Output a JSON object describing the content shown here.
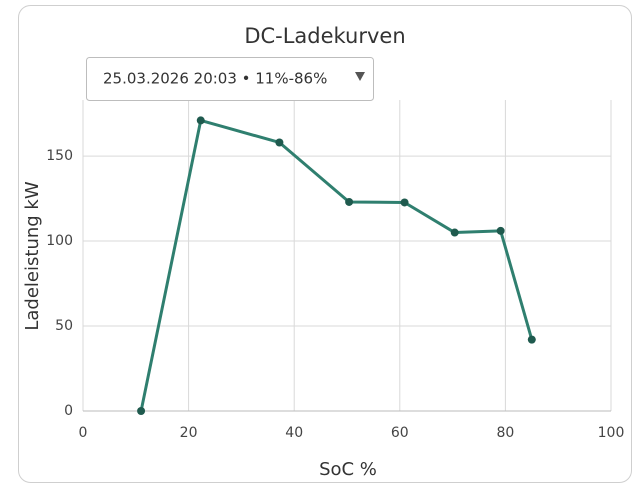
{
  "controls": {
    "dropdown": "25.03.2026 20:03 • 11%-86%"
  },
  "chart_data": {
    "type": "line",
    "title": "DC-Ladekurven",
    "x_label": "SoC %",
    "y_label": "Ladeleistung kW",
    "x": [
      11,
      22.3,
      37.2,
      50.4,
      60.9,
      70.4,
      79.1,
      85
    ],
    "series": [
      {
        "name": "Ladeleistung",
        "color": "#2f7f6f",
        "values": [
          0,
          171,
          158,
          123,
          122.7,
          105,
          106,
          42
        ]
      }
    ],
    "xlim": [
      0,
      100
    ],
    "xticks": [
      0,
      20,
      40,
      60,
      80,
      100
    ],
    "ylim": [
      0,
      183
    ],
    "yticks": [
      0,
      50,
      100,
      150
    ],
    "grid": true
  }
}
